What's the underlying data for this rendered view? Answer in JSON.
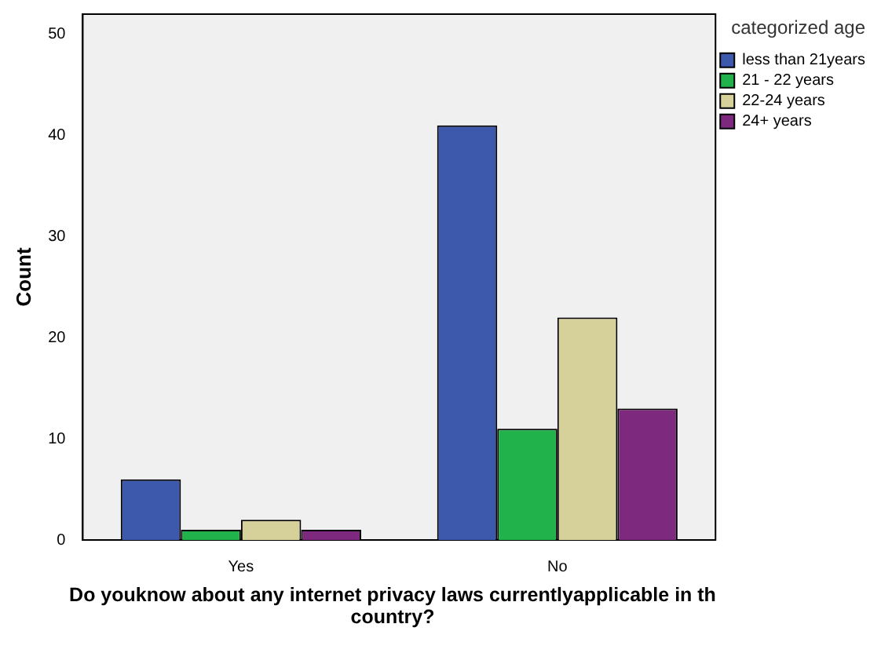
{
  "chart_data": {
    "type": "bar",
    "xlabel": "Do youknow about any internet privacy laws currentlyapplicable in th country?",
    "ylabel": "Count",
    "legend_title": "categorized age",
    "categories": [
      "Yes",
      "No"
    ],
    "series": [
      {
        "name": "less than 21years",
        "color": "#3d59ab",
        "values": [
          6,
          41
        ]
      },
      {
        "name": "21 - 22 years",
        "color": "#22b24c",
        "values": [
          1,
          11
        ]
      },
      {
        "name": "22-24 years",
        "color": "#d6d09a",
        "values": [
          2,
          22
        ]
      },
      {
        "name": "24+ years",
        "color": "#7d2a7e",
        "values": [
          1,
          13
        ]
      }
    ],
    "ylim": [
      0,
      52
    ],
    "yticks": [
      0,
      10,
      20,
      30,
      40,
      50
    ],
    "grid": false,
    "legend": "right"
  }
}
